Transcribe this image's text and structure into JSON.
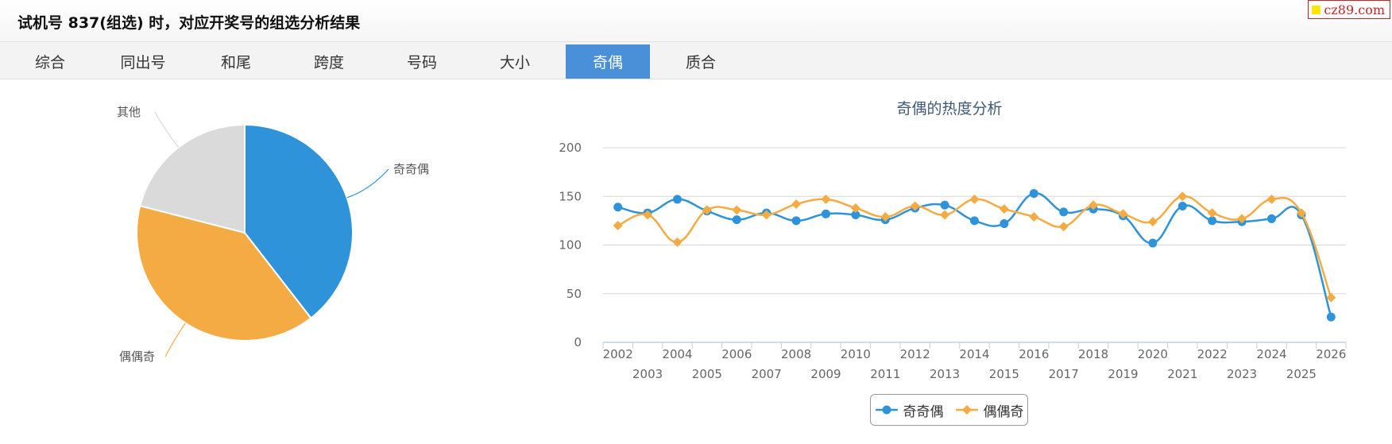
{
  "header": {
    "title": "试机号 837(组选) 时，对应开奖号的组选分析结果"
  },
  "watermark": {
    "text": "cz89.com"
  },
  "tabs": [
    {
      "label": "综合"
    },
    {
      "label": "同出号"
    },
    {
      "label": "和尾"
    },
    {
      "label": "跨度"
    },
    {
      "label": "号码"
    },
    {
      "label": "大小"
    },
    {
      "label": "奇偶",
      "active": true
    },
    {
      "label": "质合"
    }
  ],
  "colors": {
    "blue": "#2e93d9",
    "orange": "#f5ab43",
    "gray": "#dadada",
    "tab_active": "#4a90d9"
  },
  "chart_data": [
    {
      "type": "pie",
      "slices": [
        {
          "label": "奇奇偶",
          "value": 39.5,
          "color": "#2e93d9"
        },
        {
          "label": "偶偶奇",
          "value": 39.5,
          "color": "#f5ab43"
        },
        {
          "label": "其他",
          "value": 21.0,
          "color": "#dadada"
        }
      ]
    },
    {
      "type": "line",
      "title": "奇偶的热度分析",
      "categories": [
        "2002",
        "2003",
        "2004",
        "2005",
        "2006",
        "2007",
        "2008",
        "2009",
        "2010",
        "2011",
        "2012",
        "2013",
        "2014",
        "2015",
        "2016",
        "2017",
        "2018",
        "2019",
        "2020",
        "2021",
        "2022",
        "2023",
        "2024",
        "2025",
        "2026"
      ],
      "ylim": [
        0,
        200
      ],
      "yticks": [
        "0",
        "50",
        "100",
        "150",
        "200"
      ],
      "grid": true,
      "legend": "bottom",
      "series": [
        {
          "name": "奇奇偶",
          "color": "#2e93d9",
          "marker": "circle",
          "values": [
            139,
            133,
            147,
            135,
            126,
            133,
            125,
            132,
            131,
            126,
            138,
            141,
            125,
            122,
            153,
            134,
            137,
            130,
            102,
            140,
            125,
            124,
            127,
            131,
            26
          ]
        },
        {
          "name": "偶偶奇",
          "color": "#f5ab43",
          "marker": "diamond",
          "values": [
            120,
            131,
            103,
            136,
            136,
            131,
            142,
            147,
            138,
            129,
            140,
            131,
            147,
            137,
            129,
            119,
            141,
            132,
            124,
            150,
            133,
            127,
            147,
            133,
            46
          ]
        }
      ]
    }
  ]
}
